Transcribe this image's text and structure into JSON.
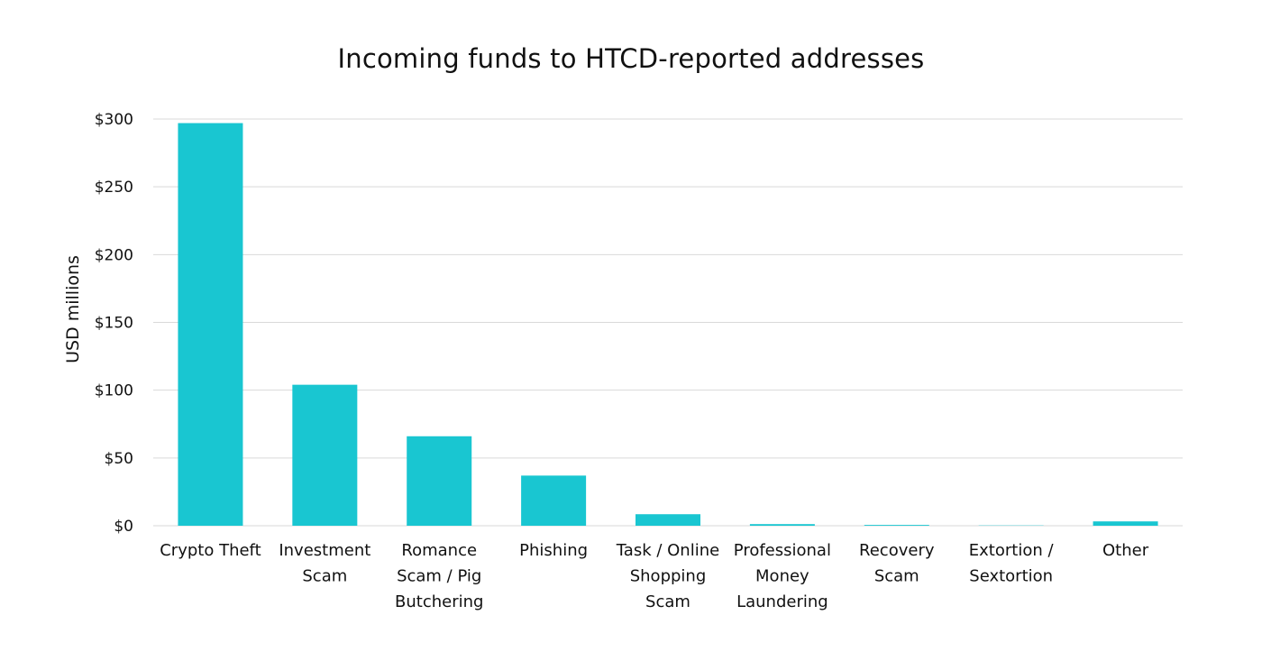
{
  "chart_data": {
    "type": "bar",
    "title": "Incoming funds to HTCD-reported addresses",
    "xlabel": "",
    "ylabel": "USD millions",
    "ylim": [
      0,
      300
    ],
    "yticks": [
      0,
      50,
      100,
      150,
      200,
      250,
      300
    ],
    "ytick_labels": [
      "$0",
      "$50",
      "$100",
      "$150",
      "$200",
      "$250",
      "$300"
    ],
    "grid": true,
    "legend": "none",
    "bar_color": "#19c6d1",
    "categories": [
      [
        "Crypto Theft"
      ],
      [
        "Investment",
        "Scam"
      ],
      [
        "Romance",
        "Scam / Pig",
        "Butchering"
      ],
      [
        "Phishing"
      ],
      [
        "Task / Online",
        "Shopping",
        "Scam"
      ],
      [
        "Professional",
        "Money",
        "Laundering"
      ],
      [
        "Recovery",
        "Scam"
      ],
      [
        "Extortion /",
        "Sextortion"
      ],
      [
        "Other"
      ]
    ],
    "values": [
      297,
      104,
      66,
      37,
      8.5,
      1.2,
      0.6,
      0.2,
      3.2
    ]
  }
}
